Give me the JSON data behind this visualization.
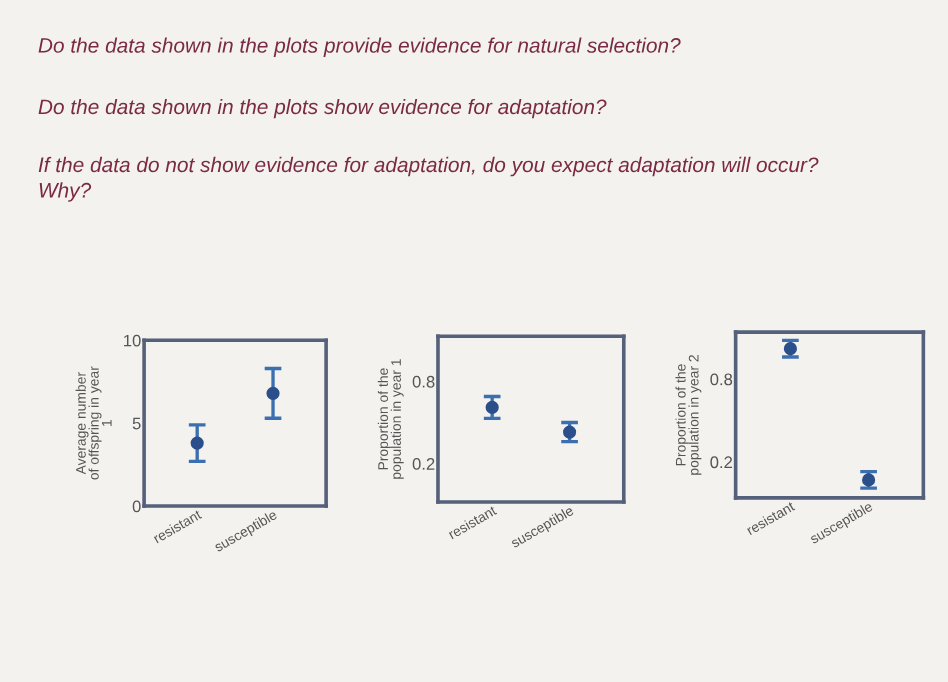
{
  "chart_data": [
    {
      "type": "scatter",
      "annotations": [
        "Do the data shown in the plots provide evidence for natural selection?",
        "Do the data shown in the plots show evidence for adaptation?",
        "If the data do not show evidence for adaptation, do you expect adaptation will occur?\nWhy?"
      ],
      "ylabel": "Average number\nof offspring in year\n1",
      "categories": [
        "resistant",
        "susceptible"
      ],
      "series": [
        {
          "color": "#2b4f8a",
          "values": [
            3.8,
            6.8
          ],
          "errors": [
            1.1,
            1.5
          ]
        }
      ],
      "ylim": [
        0,
        10
      ],
      "yticks": [
        0,
        5,
        10
      ],
      "marker": "circle",
      "grid": false
    },
    {
      "type": "scatter",
      "ylabel": "Proportion of the\npopulation in year 1",
      "categories": [
        "resistant",
        "susceptible"
      ],
      "series": [
        {
          "color": "#2b4f8a",
          "values": [
            0.61,
            0.43
          ],
          "errors": [
            0.08,
            0.07
          ]
        }
      ],
      "ylim": [
        -0.08,
        1.13
      ],
      "yticks": [
        0.2,
        0.8
      ],
      "marker": "circle",
      "grid": false
    },
    {
      "type": "scatter",
      "ylabel": "Proportion of the\npopulation in year 2",
      "categories": [
        "resistant",
        "susceptible"
      ],
      "series": [
        {
          "color": "#2b4f8a",
          "values": [
            1.02,
            0.07
          ],
          "errors": [
            0.06,
            0.06
          ]
        }
      ],
      "ylim": [
        -0.06,
        1.14
      ],
      "yticks": [
        0.2,
        0.8
      ],
      "marker": "circle",
      "grid": false
    }
  ]
}
